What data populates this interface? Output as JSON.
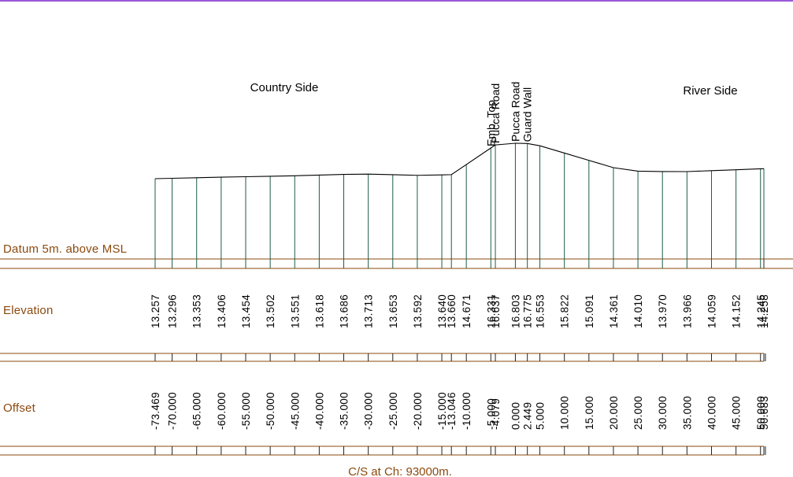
{
  "colors": {
    "top_rule": "#9B59D8",
    "band": "#8B4A0E",
    "profile": "#000000",
    "verticals": "#1E5B48",
    "labels": "#8B4A0E"
  },
  "labels": {
    "country_side": "Country Side",
    "river_side": "River Side",
    "datum": "Datum 5m. above MSL",
    "elevation": "Elevation",
    "offset": "Offset",
    "caption": "C/S at Ch: 93000m."
  },
  "features": [
    {
      "offset": -5.0,
      "label": "Emb. Top"
    },
    {
      "offset": -4.079,
      "label": "Pucca Road"
    },
    {
      "offset": 0.0,
      "label": "Pucca Road"
    },
    {
      "offset": 2.449,
      "label": "Guard Wall"
    }
  ],
  "chart_data": {
    "type": "line",
    "title": "",
    "xlabel": "Offset",
    "ylabel": "Elevation",
    "datum": 5,
    "points": [
      {
        "offset": "-73.469",
        "elevation": "13.257"
      },
      {
        "offset": "-70.000",
        "elevation": "13.296"
      },
      {
        "offset": "-65.000",
        "elevation": "13.353"
      },
      {
        "offset": "-60.000",
        "elevation": "13.406"
      },
      {
        "offset": "-55.000",
        "elevation": "13.454"
      },
      {
        "offset": "-50.000",
        "elevation": "13.502"
      },
      {
        "offset": "-45.000",
        "elevation": "13.551"
      },
      {
        "offset": "-40.000",
        "elevation": "13.618"
      },
      {
        "offset": "-35.000",
        "elevation": "13.686"
      },
      {
        "offset": "-30.000",
        "elevation": "13.713"
      },
      {
        "offset": "-25.000",
        "elevation": "13.653"
      },
      {
        "offset": "-20.000",
        "elevation": "13.592"
      },
      {
        "offset": "-15.000",
        "elevation": "13.640"
      },
      {
        "offset": "-13.046",
        "elevation": "13.660"
      },
      {
        "offset": "-10.000",
        "elevation": "14.671"
      },
      {
        "offset": "-5.000",
        "elevation": "16.331"
      },
      {
        "offset": "-4.079",
        "elevation": "16.637"
      },
      {
        "offset": "0.000",
        "elevation": "16.803"
      },
      {
        "offset": "2.449",
        "elevation": "16.775"
      },
      {
        "offset": "5.000",
        "elevation": "16.553"
      },
      {
        "offset": "10.000",
        "elevation": "15.822"
      },
      {
        "offset": "15.000",
        "elevation": "15.091"
      },
      {
        "offset": "20.000",
        "elevation": "14.361"
      },
      {
        "offset": "25.000",
        "elevation": "14.010"
      },
      {
        "offset": "30.000",
        "elevation": "13.970"
      },
      {
        "offset": "35.000",
        "elevation": "13.966"
      },
      {
        "offset": "40.000",
        "elevation": "14.059"
      },
      {
        "offset": "45.000",
        "elevation": "14.152"
      },
      {
        "offset": "50.000",
        "elevation": "14.245"
      },
      {
        "offset": "50.683",
        "elevation": "14.258"
      }
    ]
  }
}
